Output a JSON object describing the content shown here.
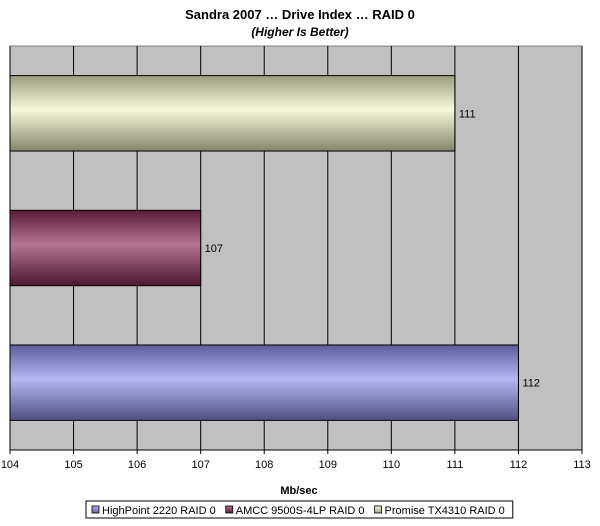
{
  "chart_data": {
    "type": "bar",
    "orientation": "horizontal",
    "title": "Sandra 2007 … Drive Index … RAID 0",
    "subtitle": "(Higher Is Better)",
    "xlabel": "Mb/sec",
    "ylabel": "",
    "xlim": [
      104,
      113
    ],
    "x_ticks": [
      "104",
      "105",
      "106",
      "107",
      "108",
      "109",
      "110",
      "111",
      "112",
      "113"
    ],
    "grid": true,
    "legend_position": "bottom",
    "series": [
      {
        "name": "HighPoint 2220 RAID 0",
        "value": 112,
        "label": "112",
        "color": "#8f8fee"
      },
      {
        "name": "AMCC 9500S-4LP  RAID 0",
        "value": 107,
        "label": "107",
        "color": "#8b2a55"
      },
      {
        "name": "Promise TX4310 RAID 0",
        "value": 111,
        "label": "111",
        "color": "#f2f2c4"
      }
    ],
    "plot_background": "#c0c0c0"
  }
}
